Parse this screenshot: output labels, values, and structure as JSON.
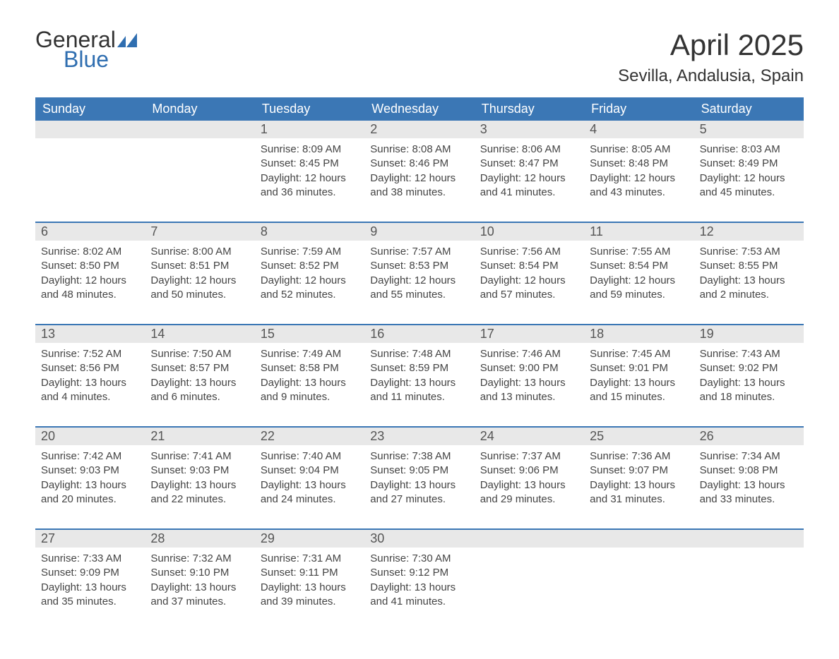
{
  "logo": {
    "text_general": "General",
    "text_blue": "Blue",
    "flag_color": "#2f6eb0"
  },
  "title": "April 2025",
  "location": "Sevilla, Andalusia, Spain",
  "colors": {
    "header_bg": "#3b77b5",
    "header_text": "#ffffff",
    "daynum_bg": "#e8e8e8",
    "row_border": "#3b77b5",
    "body_text": "#444444",
    "title_text": "#333333",
    "logo_blue": "#2f6eb0",
    "background": "#ffffff"
  },
  "typography": {
    "title_fontsize": 42,
    "location_fontsize": 24,
    "weekday_fontsize": 18,
    "daynum_fontsize": 18,
    "content_fontsize": 15,
    "font_family": "Arial"
  },
  "weekdays": [
    "Sunday",
    "Monday",
    "Tuesday",
    "Wednesday",
    "Thursday",
    "Friday",
    "Saturday"
  ],
  "weeks": [
    [
      {
        "day": "",
        "sunrise": "",
        "sunset": "",
        "daylight1": "",
        "daylight2": ""
      },
      {
        "day": "",
        "sunrise": "",
        "sunset": "",
        "daylight1": "",
        "daylight2": ""
      },
      {
        "day": "1",
        "sunrise": "Sunrise: 8:09 AM",
        "sunset": "Sunset: 8:45 PM",
        "daylight1": "Daylight: 12 hours",
        "daylight2": "and 36 minutes."
      },
      {
        "day": "2",
        "sunrise": "Sunrise: 8:08 AM",
        "sunset": "Sunset: 8:46 PM",
        "daylight1": "Daylight: 12 hours",
        "daylight2": "and 38 minutes."
      },
      {
        "day": "3",
        "sunrise": "Sunrise: 8:06 AM",
        "sunset": "Sunset: 8:47 PM",
        "daylight1": "Daylight: 12 hours",
        "daylight2": "and 41 minutes."
      },
      {
        "day": "4",
        "sunrise": "Sunrise: 8:05 AM",
        "sunset": "Sunset: 8:48 PM",
        "daylight1": "Daylight: 12 hours",
        "daylight2": "and 43 minutes."
      },
      {
        "day": "5",
        "sunrise": "Sunrise: 8:03 AM",
        "sunset": "Sunset: 8:49 PM",
        "daylight1": "Daylight: 12 hours",
        "daylight2": "and 45 minutes."
      }
    ],
    [
      {
        "day": "6",
        "sunrise": "Sunrise: 8:02 AM",
        "sunset": "Sunset: 8:50 PM",
        "daylight1": "Daylight: 12 hours",
        "daylight2": "and 48 minutes."
      },
      {
        "day": "7",
        "sunrise": "Sunrise: 8:00 AM",
        "sunset": "Sunset: 8:51 PM",
        "daylight1": "Daylight: 12 hours",
        "daylight2": "and 50 minutes."
      },
      {
        "day": "8",
        "sunrise": "Sunrise: 7:59 AM",
        "sunset": "Sunset: 8:52 PM",
        "daylight1": "Daylight: 12 hours",
        "daylight2": "and 52 minutes."
      },
      {
        "day": "9",
        "sunrise": "Sunrise: 7:57 AM",
        "sunset": "Sunset: 8:53 PM",
        "daylight1": "Daylight: 12 hours",
        "daylight2": "and 55 minutes."
      },
      {
        "day": "10",
        "sunrise": "Sunrise: 7:56 AM",
        "sunset": "Sunset: 8:54 PM",
        "daylight1": "Daylight: 12 hours",
        "daylight2": "and 57 minutes."
      },
      {
        "day": "11",
        "sunrise": "Sunrise: 7:55 AM",
        "sunset": "Sunset: 8:54 PM",
        "daylight1": "Daylight: 12 hours",
        "daylight2": "and 59 minutes."
      },
      {
        "day": "12",
        "sunrise": "Sunrise: 7:53 AM",
        "sunset": "Sunset: 8:55 PM",
        "daylight1": "Daylight: 13 hours",
        "daylight2": "and 2 minutes."
      }
    ],
    [
      {
        "day": "13",
        "sunrise": "Sunrise: 7:52 AM",
        "sunset": "Sunset: 8:56 PM",
        "daylight1": "Daylight: 13 hours",
        "daylight2": "and 4 minutes."
      },
      {
        "day": "14",
        "sunrise": "Sunrise: 7:50 AM",
        "sunset": "Sunset: 8:57 PM",
        "daylight1": "Daylight: 13 hours",
        "daylight2": "and 6 minutes."
      },
      {
        "day": "15",
        "sunrise": "Sunrise: 7:49 AM",
        "sunset": "Sunset: 8:58 PM",
        "daylight1": "Daylight: 13 hours",
        "daylight2": "and 9 minutes."
      },
      {
        "day": "16",
        "sunrise": "Sunrise: 7:48 AM",
        "sunset": "Sunset: 8:59 PM",
        "daylight1": "Daylight: 13 hours",
        "daylight2": "and 11 minutes."
      },
      {
        "day": "17",
        "sunrise": "Sunrise: 7:46 AM",
        "sunset": "Sunset: 9:00 PM",
        "daylight1": "Daylight: 13 hours",
        "daylight2": "and 13 minutes."
      },
      {
        "day": "18",
        "sunrise": "Sunrise: 7:45 AM",
        "sunset": "Sunset: 9:01 PM",
        "daylight1": "Daylight: 13 hours",
        "daylight2": "and 15 minutes."
      },
      {
        "day": "19",
        "sunrise": "Sunrise: 7:43 AM",
        "sunset": "Sunset: 9:02 PM",
        "daylight1": "Daylight: 13 hours",
        "daylight2": "and 18 minutes."
      }
    ],
    [
      {
        "day": "20",
        "sunrise": "Sunrise: 7:42 AM",
        "sunset": "Sunset: 9:03 PM",
        "daylight1": "Daylight: 13 hours",
        "daylight2": "and 20 minutes."
      },
      {
        "day": "21",
        "sunrise": "Sunrise: 7:41 AM",
        "sunset": "Sunset: 9:03 PM",
        "daylight1": "Daylight: 13 hours",
        "daylight2": "and 22 minutes."
      },
      {
        "day": "22",
        "sunrise": "Sunrise: 7:40 AM",
        "sunset": "Sunset: 9:04 PM",
        "daylight1": "Daylight: 13 hours",
        "daylight2": "and 24 minutes."
      },
      {
        "day": "23",
        "sunrise": "Sunrise: 7:38 AM",
        "sunset": "Sunset: 9:05 PM",
        "daylight1": "Daylight: 13 hours",
        "daylight2": "and 27 minutes."
      },
      {
        "day": "24",
        "sunrise": "Sunrise: 7:37 AM",
        "sunset": "Sunset: 9:06 PM",
        "daylight1": "Daylight: 13 hours",
        "daylight2": "and 29 minutes."
      },
      {
        "day": "25",
        "sunrise": "Sunrise: 7:36 AM",
        "sunset": "Sunset: 9:07 PM",
        "daylight1": "Daylight: 13 hours",
        "daylight2": "and 31 minutes."
      },
      {
        "day": "26",
        "sunrise": "Sunrise: 7:34 AM",
        "sunset": "Sunset: 9:08 PM",
        "daylight1": "Daylight: 13 hours",
        "daylight2": "and 33 minutes."
      }
    ],
    [
      {
        "day": "27",
        "sunrise": "Sunrise: 7:33 AM",
        "sunset": "Sunset: 9:09 PM",
        "daylight1": "Daylight: 13 hours",
        "daylight2": "and 35 minutes."
      },
      {
        "day": "28",
        "sunrise": "Sunrise: 7:32 AM",
        "sunset": "Sunset: 9:10 PM",
        "daylight1": "Daylight: 13 hours",
        "daylight2": "and 37 minutes."
      },
      {
        "day": "29",
        "sunrise": "Sunrise: 7:31 AM",
        "sunset": "Sunset: 9:11 PM",
        "daylight1": "Daylight: 13 hours",
        "daylight2": "and 39 minutes."
      },
      {
        "day": "30",
        "sunrise": "Sunrise: 7:30 AM",
        "sunset": "Sunset: 9:12 PM",
        "daylight1": "Daylight: 13 hours",
        "daylight2": "and 41 minutes."
      },
      {
        "day": "",
        "sunrise": "",
        "sunset": "",
        "daylight1": "",
        "daylight2": ""
      },
      {
        "day": "",
        "sunrise": "",
        "sunset": "",
        "daylight1": "",
        "daylight2": ""
      },
      {
        "day": "",
        "sunrise": "",
        "sunset": "",
        "daylight1": "",
        "daylight2": ""
      }
    ]
  ]
}
